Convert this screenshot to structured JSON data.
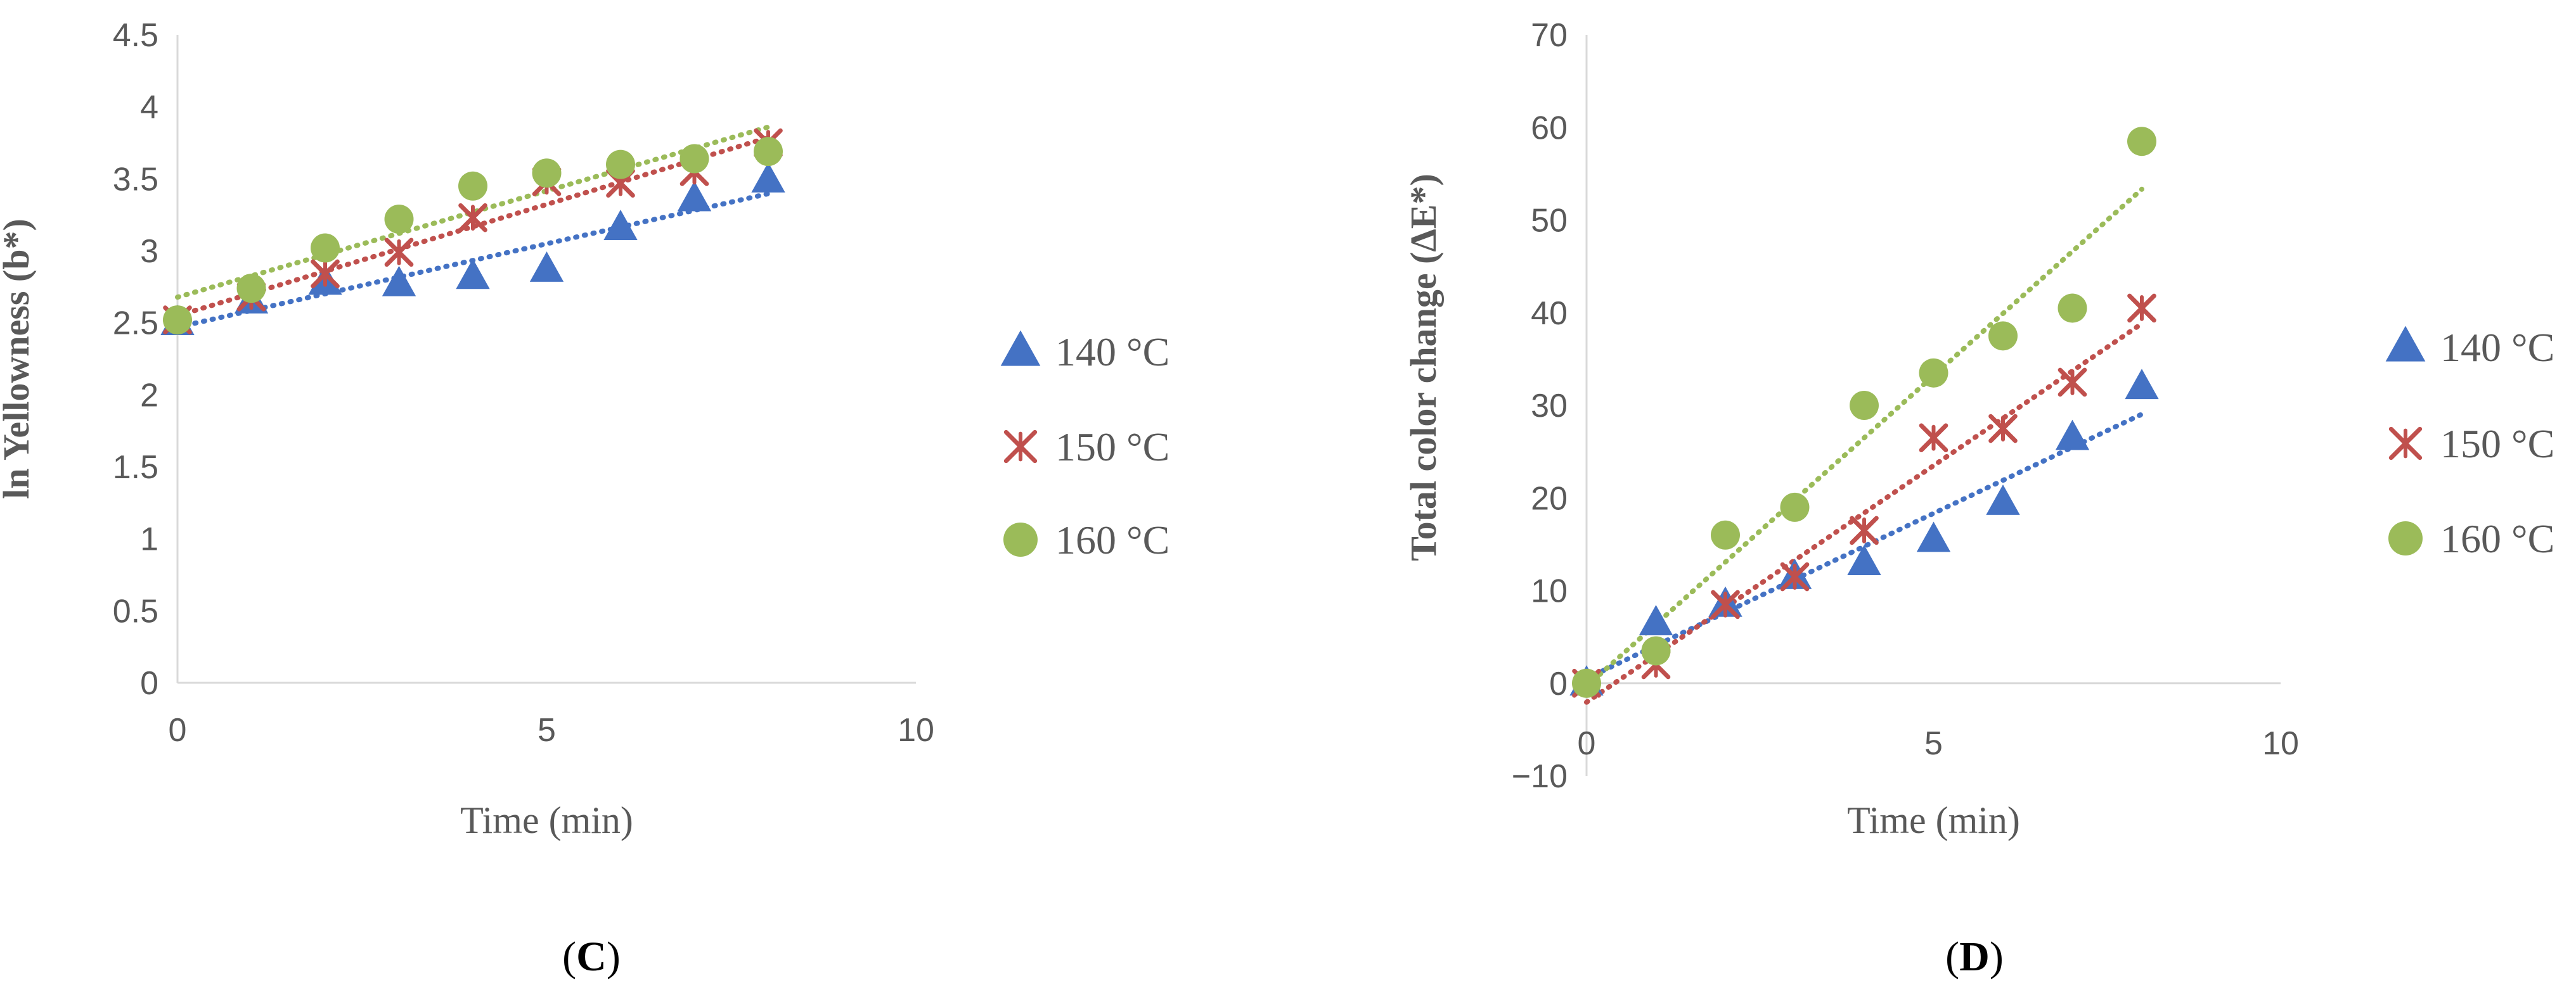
{
  "chart_data": [
    {
      "type": "scatter",
      "panel": "C",
      "xlabel": "Time (min)",
      "ylabel": "ln Yellowness (b*)",
      "xlim": [
        0,
        10
      ],
      "ylim": [
        0,
        4.5
      ],
      "xticks": [
        "0",
        "5",
        "10"
      ],
      "yticks": [
        "0",
        "0.5",
        "1",
        "1.5",
        "2",
        "2.5",
        "3",
        "3.5",
        "4",
        "4.5"
      ],
      "x": [
        0,
        1,
        2,
        3,
        4,
        5,
        6,
        7,
        8
      ],
      "series": [
        {
          "name": "140 °C",
          "marker": "triangle",
          "color": "#4472C4",
          "values": [
            2.5,
            2.65,
            2.78,
            2.77,
            2.82,
            2.87,
            3.16,
            3.36,
            3.49
          ]
        },
        {
          "name": "150 °C",
          "marker": "star",
          "color": "#C0504D",
          "values": [
            2.52,
            2.68,
            2.84,
            2.99,
            3.23,
            3.48,
            3.47,
            3.55,
            3.75
          ]
        },
        {
          "name": "160 °C",
          "marker": "circle",
          "color": "#9BBB59",
          "values": [
            2.52,
            2.74,
            3.02,
            3.22,
            3.45,
            3.54,
            3.6,
            3.64,
            3.69
          ]
        }
      ],
      "trendline": "linear dotted",
      "grid": false,
      "legend": "right"
    },
    {
      "type": "scatter",
      "panel": "D",
      "xlabel": "Time (min)",
      "ylabel": "Total color change (ΔE*)",
      "xlim": [
        0,
        10
      ],
      "ylim": [
        -10,
        70
      ],
      "xticks": [
        "0",
        "5",
        "10"
      ],
      "yticks": [
        "−10",
        "0",
        "10",
        "20",
        "30",
        "40",
        "50",
        "60",
        "70"
      ],
      "x": [
        0,
        1,
        2,
        3,
        4,
        5,
        6,
        7,
        8
      ],
      "series": [
        {
          "name": "140 °C",
          "marker": "triangle",
          "color": "#4472C4",
          "values": [
            0,
            6.5,
            8.5,
            11.5,
            13,
            15.5,
            19.5,
            26.5,
            32
          ]
        },
        {
          "name": "150 °C",
          "marker": "star",
          "color": "#C0504D",
          "values": [
            0,
            2,
            8.5,
            11.5,
            16.5,
            26.5,
            27.5,
            32.5,
            40.5
          ]
        },
        {
          "name": "160 °C",
          "marker": "circle",
          "color": "#9BBB59",
          "values": [
            0,
            3.5,
            16,
            19,
            30,
            33.5,
            37.5,
            40.5,
            58.5
          ]
        }
      ],
      "trendline": "linear dotted",
      "grid": false,
      "legend": "right"
    }
  ],
  "panel_labels": {
    "C": "C",
    "D": "D"
  }
}
